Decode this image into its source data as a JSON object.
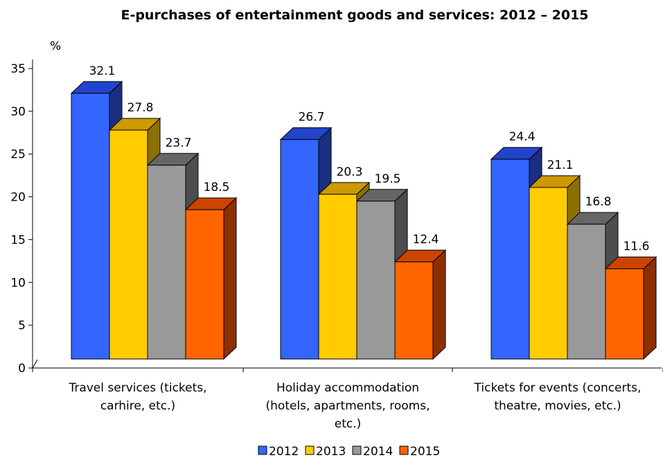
{
  "chart_data": {
    "type": "bar",
    "title": "E-purchases of entertainment goods and services: 2012 – 2015",
    "ylabel": "%",
    "ylim": [
      0,
      35
    ],
    "yticks": [
      0,
      5,
      10,
      15,
      20,
      25,
      30,
      35
    ],
    "categories": [
      "Travel services (tickets, carhire, etc.)",
      "Holiday accommodation (hotels, apartments, rooms, etc.)",
      "Tickets for events (concerts, theatre, movies, etc.)"
    ],
    "category_lines": [
      [
        "Travel services (tickets,",
        "carhire, etc.)"
      ],
      [
        "Holiday accommodation",
        "(hotels, apartments, rooms,",
        "etc.)"
      ],
      [
        "Tickets for events (concerts,",
        "theatre, movies, etc.)"
      ]
    ],
    "series": [
      {
        "name": "2012",
        "values": [
          32.1,
          26.7,
          24.4
        ],
        "color": "#3366FF",
        "top": "#2244CC",
        "side": "#1A2F80"
      },
      {
        "name": "2013",
        "values": [
          27.8,
          20.3,
          21.1
        ],
        "color": "#FFCC00",
        "top": "#CC9900",
        "side": "#8C7000"
      },
      {
        "name": "2014",
        "values": [
          23.7,
          19.5,
          16.8
        ],
        "color": "#999999",
        "top": "#666666",
        "side": "#4D4D4D"
      },
      {
        "name": "2015",
        "values": [
          18.5,
          12.4,
          11.6
        ],
        "color": "#FF6600",
        "top": "#CC4400",
        "side": "#8C3000"
      }
    ],
    "legend_position": "bottom",
    "grid": false
  }
}
